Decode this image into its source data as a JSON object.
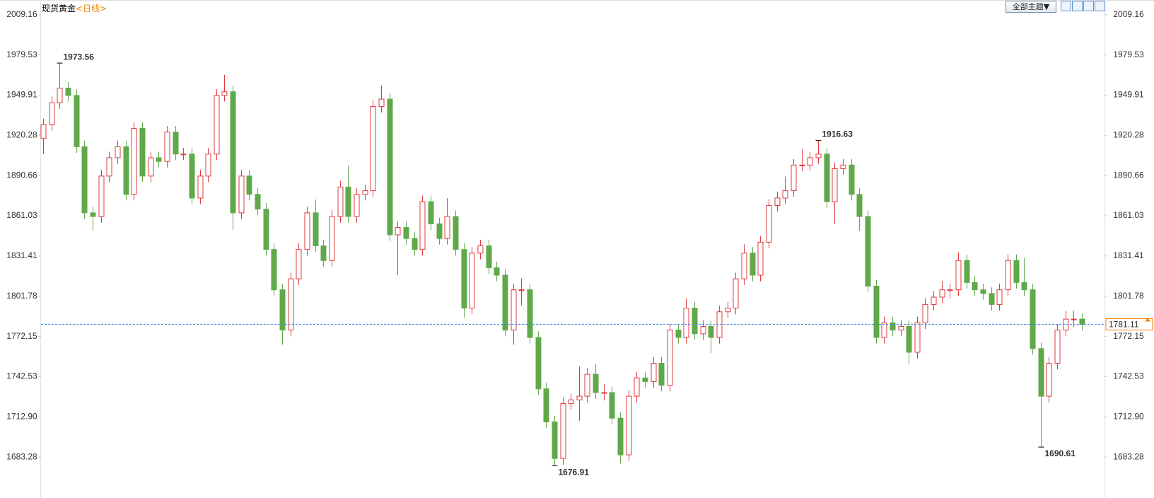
{
  "chart_data": {
    "type": "candlestick",
    "title": "现货黄金",
    "subtitle": "<日线>",
    "theme_button": "全部主题▼",
    "ylim": [
      1655.2,
      2020
    ],
    "yticks": [
      2009.16,
      1979.53,
      1949.91,
      1920.28,
      1890.66,
      1861.03,
      1831.41,
      1801.78,
      1772.15,
      1742.53,
      {
        "value": 1712.9,
        "label": "1712.90"
      },
      1683.28
    ],
    "up_color": "#e0393e",
    "down_color": "#5fa94a",
    "last_price": 1781.11,
    "last_price_color": "#3b8ee8",
    "annotations": [
      1973.56,
      1916.63,
      1676.91,
      1690.61
    ],
    "open": [
      1918.0,
      1928.1,
      1944.3,
      1955.1,
      1949.7,
      1911.9,
      1863.2,
      1860.5,
      1890.3,
      1903.8,
      1911.9,
      1876.8,
      1925.4,
      1890.3,
      1903.8,
      1901.1,
      1922.7,
      1906.5,
      1906.5,
      1874.1,
      1890.3,
      1906.5,
      1949.7,
      1952.4,
      1863.2,
      1890.3,
      1876.8,
      1865.9,
      1836.2,
      1806.5,
      1776.8,
      1814.6,
      1836.2,
      1863.2,
      1838.9,
      1828.1,
      1860.5,
      1882.2,
      1860.5,
      1876.8,
      1879.5,
      1941.6,
      1947.0,
      1847.0,
      1852.4,
      1844.3,
      1836.2,
      1871.4,
      1855.1,
      1844.3,
      1860.5,
      1836.2,
      1793.0,
      1833.5,
      1838.9,
      1822.7,
      1817.3,
      1776.8,
      1806.5,
      1806.5,
      1771.4,
      1733.5,
      1709.2,
      1682.2,
      1722.7,
      1725.4,
      1728.1,
      1744.3,
      1730.8,
      1730.8,
      1711.9,
      1684.9,
      1728.1,
      1741.6,
      1738.9,
      1752.4,
      1736.2,
      1776.8,
      1771.4,
      1793.0,
      1774.1,
      1779.5,
      1771.4,
      1790.3,
      1793.0,
      1814.6,
      1833.5,
      1817.3,
      1841.6,
      1868.6,
      1874.1,
      1879.5,
      1898.4,
      1898.4,
      1903.8,
      1906.5,
      1871.4,
      1895.7,
      1898.4,
      1876.8,
      1860.5,
      1809.2,
      1771.4,
      1782.2,
      1776.8,
      1779.5,
      1760.5,
      1782.2,
      1795.7,
      1801.1,
      1806.5,
      1806.5,
      1828.1,
      1811.9,
      1806.5,
      1803.8,
      1795.7,
      1806.5,
      1828.1,
      1811.9,
      1806.5,
      1763.2,
      1728.1,
      1752.4,
      1776.8,
      1784.9,
      1784.9
    ],
    "high": [
      1932.6,
      1948.8,
      1973.56,
      1959.6,
      1954.2,
      1916.4,
      1867.7,
      1894.8,
      1908.3,
      1916.4,
      1916.4,
      1930.0,
      1929.9,
      1908.3,
      1908.3,
      1927.2,
      1927.2,
      1911.0,
      1911.0,
      1894.8,
      1911.0,
      1954.2,
      1964.8,
      1956.9,
      1894.8,
      1894.8,
      1881.3,
      1870.4,
      1840.7,
      1811.0,
      1819.1,
      1840.7,
      1867.7,
      1873.0,
      1843.4,
      1865.0,
      1886.7,
      1898.0,
      1881.3,
      1884.0,
      1946.1,
      1957.0,
      1951.5,
      1856.9,
      1856.9,
      1848.8,
      1875.9,
      1875.9,
      1859.6,
      1874.0,
      1865.0,
      1840.7,
      1838.0,
      1843.4,
      1843.4,
      1827.2,
      1821.8,
      1811.0,
      1815.0,
      1811.0,
      1775.9,
      1738.0,
      1713.7,
      1727.2,
      1729.9,
      1750.0,
      1748.8,
      1752.0,
      1737.0,
      1735.3,
      1716.4,
      1732.6,
      1746.1,
      1746.1,
      1756.9,
      1756.9,
      1781.3,
      1781.3,
      1800.0,
      1797.5,
      1784.0,
      1784.0,
      1794.8,
      1797.5,
      1819.1,
      1840.0,
      1838.0,
      1846.1,
      1873.1,
      1878.6,
      1890.0,
      1902.9,
      1910.0,
      1908.3,
      1916.63,
      1911.0,
      1900.2,
      1902.9,
      1902.9,
      1881.3,
      1865.0,
      1813.7,
      1786.7,
      1786.7,
      1784.0,
      1784.0,
      1786.7,
      1800.2,
      1805.6,
      1813.0,
      1811.0,
      1834.0,
      1832.6,
      1816.4,
      1811.0,
      1808.3,
      1811.0,
      1832.6,
      1832.6,
      1830.0,
      1811.0,
      1767.7,
      1756.9,
      1781.3,
      1791.0,
      1791.0,
      1789.0
    ],
    "low": [
      1906.5,
      1923.6,
      1939.8,
      1945.2,
      1907.4,
      1858.7,
      1850.0,
      1856.0,
      1885.8,
      1899.3,
      1872.3,
      1872.3,
      1885.8,
      1885.8,
      1896.6,
      1896.6,
      1902.0,
      1902.0,
      1869.6,
      1869.6,
      1885.8,
      1902.0,
      1945.2,
      1850.5,
      1858.7,
      1872.3,
      1861.4,
      1831.7,
      1802.0,
      1766.0,
      1772.3,
      1810.1,
      1831.7,
      1834.4,
      1823.6,
      1823.6,
      1856.0,
      1856.0,
      1856.0,
      1872.3,
      1875.0,
      1937.1,
      1842.5,
      1817.3,
      1839.8,
      1831.7,
      1831.7,
      1850.6,
      1839.8,
      1839.8,
      1831.7,
      1786.0,
      1788.5,
      1829.0,
      1818.2,
      1812.8,
      1772.3,
      1766.0,
      1795.0,
      1766.9,
      1729.0,
      1704.7,
      1676.91,
      1677.7,
      1718.2,
      1710.0,
      1723.6,
      1726.3,
      1725.0,
      1707.4,
      1678.5,
      1680.4,
      1723.6,
      1734.4,
      1734.4,
      1731.7,
      1731.7,
      1766.9,
      1766.9,
      1769.6,
      1769.6,
      1760.0,
      1766.9,
      1785.8,
      1788.5,
      1810.1,
      1812.8,
      1812.8,
      1837.1,
      1864.1,
      1869.6,
      1875.0,
      1893.9,
      1893.9,
      1899.3,
      1866.9,
      1855.0,
      1891.2,
      1872.3,
      1850.0,
      1804.7,
      1766.9,
      1766.9,
      1772.3,
      1772.3,
      1752.0,
      1756.0,
      1777.7,
      1791.2,
      1796.6,
      1800.0,
      1802.0,
      1807.4,
      1802.0,
      1799.3,
      1791.2,
      1791.2,
      1802.0,
      1807.4,
      1802.0,
      1758.7,
      1690.61,
      1723.6,
      1747.9,
      1772.3,
      1779.0,
      1776.6
    ],
    "close": [
      1928.1,
      1944.3,
      1955.1,
      1949.7,
      1911.9,
      1863.2,
      1860.5,
      1890.3,
      1903.8,
      1911.9,
      1876.8,
      1925.4,
      1890.3,
      1903.8,
      1901.1,
      1922.7,
      1906.5,
      1906.5,
      1874.1,
      1890.3,
      1906.5,
      1949.7,
      1952.4,
      1863.2,
      1890.3,
      1876.8,
      1865.9,
      1836.2,
      1806.5,
      1776.8,
      1814.6,
      1836.2,
      1863.2,
      1838.9,
      1828.1,
      1860.5,
      1882.2,
      1860.5,
      1876.8,
      1879.5,
      1941.6,
      1947.0,
      1847.0,
      1852.4,
      1844.3,
      1836.2,
      1871.4,
      1855.1,
      1844.3,
      1860.5,
      1836.2,
      1793.0,
      1833.5,
      1838.9,
      1822.7,
      1817.3,
      1776.8,
      1806.5,
      1806.5,
      1771.4,
      1733.5,
      1709.2,
      1682.2,
      1722.7,
      1725.4,
      1728.1,
      1744.3,
      1730.8,
      1730.8,
      1711.9,
      1684.9,
      1728.1,
      1741.6,
      1738.9,
      1752.4,
      1736.2,
      1776.8,
      1771.4,
      1793.0,
      1774.1,
      1779.5,
      1771.4,
      1790.3,
      1793.0,
      1814.6,
      1833.5,
      1817.3,
      1841.6,
      1868.6,
      1874.1,
      1879.5,
      1898.4,
      1898.4,
      1903.8,
      1906.5,
      1871.4,
      1895.7,
      1898.4,
      1876.8,
      1860.5,
      1809.2,
      1771.4,
      1782.2,
      1776.8,
      1779.5,
      1760.5,
      1782.2,
      1795.7,
      1801.1,
      1806.5,
      1806.5,
      1828.1,
      1811.9,
      1806.5,
      1803.8,
      1795.7,
      1806.5,
      1828.1,
      1811.9,
      1806.5,
      1763.2,
      1728.1,
      1752.4,
      1776.8,
      1784.9,
      1784.9,
      1781.1
    ]
  }
}
